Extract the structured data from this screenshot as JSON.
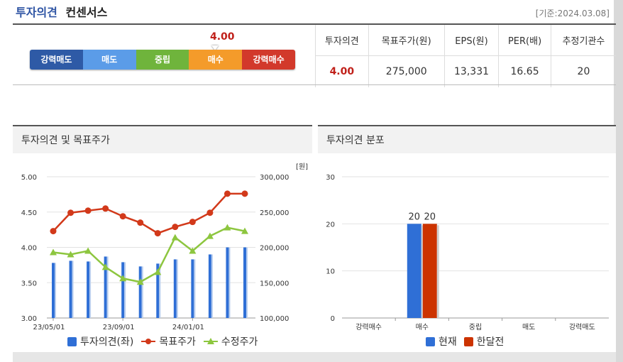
{
  "header": {
    "title_main": "투자의견",
    "title_sub": "컨센서스",
    "date": "[기준:2024.03.08]"
  },
  "gauge": {
    "value": "4.00",
    "value_num": 4.0,
    "segments": [
      {
        "label": "강력매도",
        "color": "#2e5aa6"
      },
      {
        "label": "매도",
        "color": "#5b9ce8"
      },
      {
        "label": "중립",
        "color": "#6fb43c"
      },
      {
        "label": "매수",
        "color": "#f49b2a"
      },
      {
        "label": "강력매수",
        "color": "#d2392b"
      }
    ]
  },
  "summary": {
    "headers": [
      "투자의견",
      "목표주가(원)",
      "EPS(원)",
      "PER(배)",
      "추정기관수"
    ],
    "values": [
      "4.00",
      "275,000",
      "13,331",
      "16.65",
      "20"
    ]
  },
  "left_panel": {
    "title": "투자의견 및 목표주가"
  },
  "right_panel": {
    "title": "투자의견 분포"
  },
  "chart_data": [
    {
      "type": "bar+line",
      "title": "투자의견 및 목표주가",
      "x_tick_labels": [
        "23/05/01",
        "23/09/01",
        "24/01/01"
      ],
      "x_tick_index": [
        0,
        4,
        8
      ],
      "y_left_ticks": [
        "3.00",
        "3.50",
        "4.00",
        "4.50",
        "5.00"
      ],
      "y_left_range": [
        3.0,
        5.0
      ],
      "y_right_unit": "[원]",
      "y_right_ticks": [
        "100,000",
        "150,000",
        "200,000",
        "250,000",
        "300,000"
      ],
      "y_right_range": [
        100000,
        300000
      ],
      "grid": true,
      "legend_position": "bottom",
      "series": [
        {
          "name": "투자의견(좌)",
          "kind": "bar",
          "axis": "left",
          "color": "#2f6fd6",
          "values": [
            3.78,
            3.81,
            3.8,
            3.87,
            3.79,
            3.73,
            3.77,
            3.83,
            3.83,
            3.9,
            4.0,
            4.0
          ]
        },
        {
          "name": "목표주가",
          "kind": "line",
          "axis": "right",
          "color": "#d2391a",
          "values": [
            223000,
            249000,
            252000,
            255000,
            244000,
            235000,
            220000,
            229000,
            236000,
            249000,
            276000,
            276000
          ]
        },
        {
          "name": "수정주가",
          "kind": "line",
          "axis": "right",
          "color": "#8dc63f",
          "values": [
            193000,
            190000,
            195000,
            172000,
            156000,
            151000,
            165000,
            214000,
            195000,
            216000,
            228000,
            223000
          ]
        }
      ]
    },
    {
      "type": "bar",
      "title": "투자의견 분포",
      "categories": [
        "강력매수",
        "매수",
        "중립",
        "매도",
        "강력매도"
      ],
      "y_ticks": [
        "0",
        "10",
        "20",
        "30"
      ],
      "ylim": [
        0,
        30
      ],
      "grid": true,
      "legend_position": "bottom",
      "series": [
        {
          "name": "현재",
          "color": "#2f6fd6",
          "values": [
            0,
            20,
            0,
            0,
            0
          ]
        },
        {
          "name": "한달전",
          "color": "#cc3300",
          "values": [
            0,
            20,
            0,
            0,
            0
          ]
        }
      ]
    }
  ]
}
